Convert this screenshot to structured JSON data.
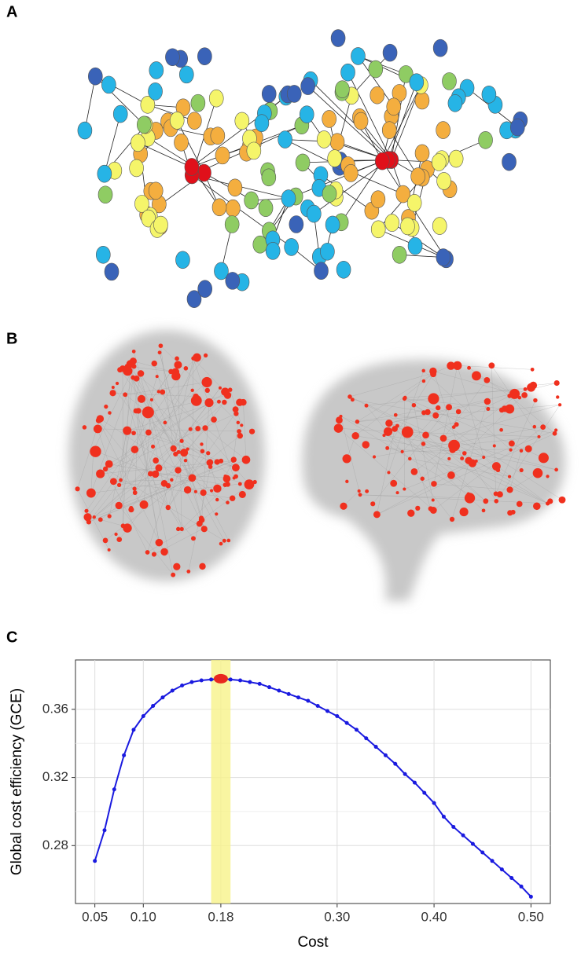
{
  "panels": {
    "a": {
      "label": "A"
    },
    "b": {
      "label": "B"
    },
    "c": {
      "label": "C"
    }
  },
  "chart_data": {
    "type": "line",
    "x_label": "Cost",
    "y_label": "Global cost efficiency (GCE)",
    "x": [
      0.05,
      0.06,
      0.07,
      0.08,
      0.09,
      0.1,
      0.11,
      0.12,
      0.13,
      0.14,
      0.15,
      0.16,
      0.17,
      0.18,
      0.19,
      0.2,
      0.21,
      0.22,
      0.23,
      0.24,
      0.25,
      0.26,
      0.27,
      0.28,
      0.29,
      0.3,
      0.31,
      0.32,
      0.33,
      0.34,
      0.35,
      0.36,
      0.37,
      0.38,
      0.39,
      0.4,
      0.41,
      0.42,
      0.43,
      0.44,
      0.45,
      0.46,
      0.47,
      0.48,
      0.49,
      0.5
    ],
    "series": [
      {
        "color": "#1a1adf",
        "values": [
          0.271,
          0.289,
          0.313,
          0.333,
          0.348,
          0.356,
          0.362,
          0.367,
          0.371,
          0.374,
          0.376,
          0.377,
          0.3775,
          0.378,
          0.3775,
          0.377,
          0.376,
          0.375,
          0.373,
          0.371,
          0.369,
          0.367,
          0.365,
          0.362,
          0.359,
          0.356,
          0.352,
          0.348,
          0.343,
          0.338,
          0.333,
          0.328,
          0.322,
          0.317,
          0.311,
          0.305,
          0.297,
          0.291,
          0.286,
          0.281,
          0.276,
          0.271,
          0.266,
          0.261,
          0.256,
          0.25
        ]
      }
    ],
    "highlight": {
      "x": [
        0.17,
        0.19
      ],
      "color": "#f7f28a",
      "point": {
        "x": 0.18,
        "y": 0.378,
        "color": "#e8281e"
      }
    },
    "xlim": [
      0.03,
      0.52
    ],
    "ylim": [
      0.246,
      0.389
    ],
    "xticks": [
      0.05,
      {
        "value": 0.1,
        "label": "0.10"
      },
      0.18,
      {
        "value": 0.3,
        "label": "0.30"
      },
      {
        "value": 0.4,
        "label": "0.40"
      },
      {
        "value": 0.5,
        "label": "0.50"
      }
    ],
    "yticks": [
      0.28,
      0.32,
      0.36
    ],
    "grid": true
  }
}
